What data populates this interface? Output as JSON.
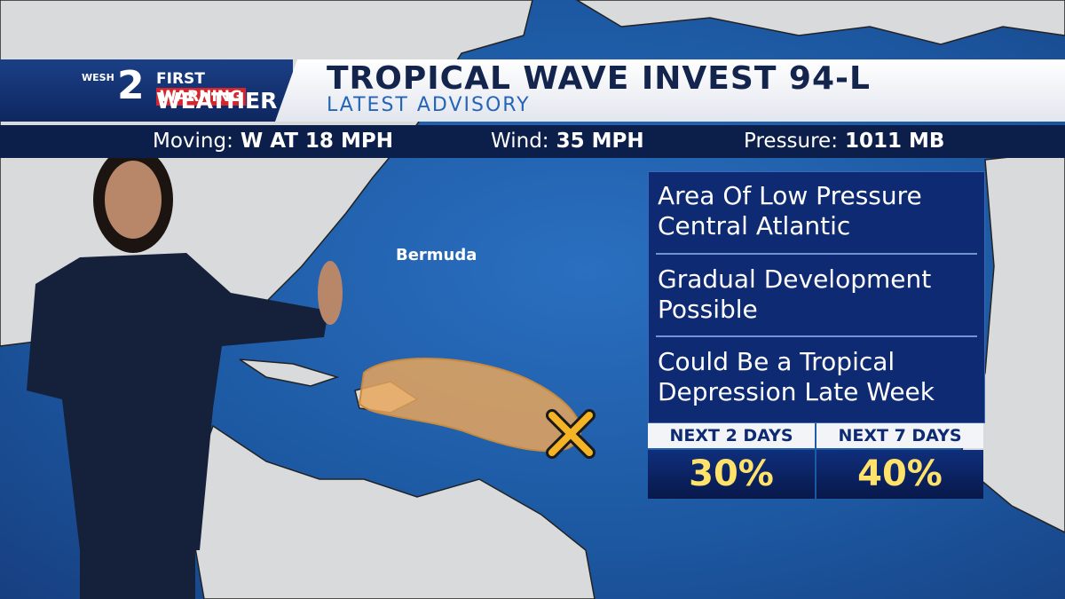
{
  "logo": {
    "station": "WESH",
    "number": "2",
    "brand_top": "FIRST",
    "brand_warning": "WARNING",
    "brand_bottom": "WEATHER"
  },
  "header": {
    "title": "TROPICAL WAVE INVEST 94-L",
    "subtitle": "LATEST ADVISORY"
  },
  "stats": [
    {
      "label": "Moving:",
      "value": "W AT 18 MPH"
    },
    {
      "label": "Wind:",
      "value": "35 MPH"
    },
    {
      "label": "Pressure:",
      "value": "1011 MB"
    }
  ],
  "map": {
    "labels": [
      "Bermuda"
    ]
  },
  "panel": {
    "items": [
      "Area Of Low Pressure Central Atlantic",
      "Gradual Development Possible",
      "Could Be a Tropical Depression Late Week"
    ],
    "outlook": [
      {
        "label": "NEXT 2 DAYS",
        "value": "30%"
      },
      {
        "label": "NEXT 7 DAYS",
        "value": "40%"
      }
    ]
  }
}
